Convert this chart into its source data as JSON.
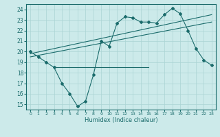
{
  "xlabel": "Humidex (Indice chaleur)",
  "bg_color": "#cceaea",
  "grid_color": "#aad4d4",
  "line_color": "#1a6b6b",
  "xlim": [
    -0.5,
    23.5
  ],
  "ylim": [
    14.5,
    24.5
  ],
  "yticks": [
    15,
    16,
    17,
    18,
    19,
    20,
    21,
    22,
    23,
    24
  ],
  "xticks": [
    0,
    1,
    2,
    3,
    4,
    5,
    6,
    7,
    8,
    9,
    10,
    11,
    12,
    13,
    14,
    15,
    16,
    17,
    18,
    19,
    20,
    21,
    22,
    23
  ],
  "main_x": [
    0,
    1,
    2,
    3,
    4,
    5,
    6,
    7,
    8,
    9,
    10,
    11,
    12,
    13,
    14,
    15,
    16,
    17,
    18,
    19,
    20,
    21,
    22,
    23
  ],
  "main_y": [
    20.0,
    19.5,
    19.0,
    18.5,
    17.0,
    16.0,
    14.8,
    15.3,
    17.8,
    21.0,
    20.5,
    22.7,
    23.3,
    23.2,
    22.8,
    22.8,
    22.7,
    23.5,
    24.1,
    23.6,
    22.0,
    20.3,
    19.2,
    18.7
  ],
  "trend1_x": [
    0,
    23
  ],
  "trend1_y": [
    19.8,
    23.5
  ],
  "trend2_x": [
    0,
    23
  ],
  "trend2_y": [
    19.5,
    22.8
  ],
  "hline_x": [
    3,
    15
  ],
  "hline_y": [
    18.5,
    18.5
  ]
}
